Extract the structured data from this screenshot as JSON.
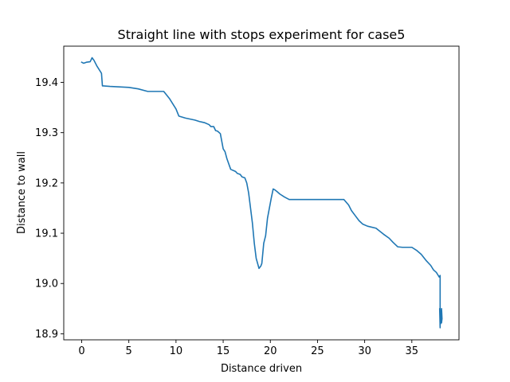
{
  "chart_data": {
    "type": "line",
    "title": "Straight line with stops experiment for case5",
    "xlabel": "Distance driven",
    "ylabel": "Distance to wall",
    "xlim": [
      -1.9,
      40.0
    ],
    "ylim": [
      18.888,
      19.472
    ],
    "xticks": [
      0,
      5,
      10,
      15,
      20,
      25,
      30,
      35
    ],
    "yticks": [
      18.9,
      19.0,
      19.1,
      19.2,
      19.3,
      19.4
    ],
    "xtick_labels": [
      "0",
      "5",
      "10",
      "15",
      "20",
      "25",
      "30",
      "35"
    ],
    "ytick_labels": [
      "18.9",
      "19.0",
      "19.1",
      "19.2",
      "19.3",
      "19.4"
    ],
    "grid": false,
    "color": "#1f77b4",
    "series": [
      {
        "x": [
          0,
          0.2,
          0.5,
          0.9,
          1.1,
          1.3,
          1.6,
          2.1,
          2.2,
          2.3,
          3.0,
          5.0,
          6.0,
          7.0,
          8.0,
          8.7,
          9.3,
          10.0,
          10.3,
          11.0,
          12.0,
          12.5,
          13.0,
          13.5,
          13.7,
          14.0,
          14.2,
          14.4,
          14.7,
          15.0,
          15.2,
          15.4,
          15.8,
          16.3,
          16.5,
          16.8,
          17.0,
          17.3,
          17.5,
          17.7,
          17.9,
          18.1,
          18.3,
          18.5,
          18.8,
          19.0,
          19.1,
          19.3,
          19.5,
          19.7,
          19.9,
          20.1,
          20.3,
          20.5,
          20.7,
          21.0,
          21.5,
          22.0,
          22.5,
          23.0,
          25.0,
          27.0,
          27.8,
          28.3,
          28.6,
          29.0,
          29.4,
          29.8,
          30.3,
          31.2,
          32.0,
          32.6,
          33.0,
          33.5,
          34.0,
          34.5,
          35.0,
          35.5,
          36.0,
          36.5,
          37.0,
          37.3,
          37.6,
          37.8,
          37.9,
          38.0,
          38.0,
          37.95,
          38.05,
          38.1,
          38.15,
          38.2,
          38.15
        ],
        "y": [
          19.44,
          19.438,
          19.44,
          19.441,
          19.449,
          19.444,
          19.433,
          19.418,
          19.393,
          19.393,
          19.392,
          19.39,
          19.387,
          19.382,
          19.382,
          19.382,
          19.368,
          19.347,
          19.333,
          19.329,
          19.325,
          19.322,
          19.32,
          19.316,
          19.312,
          19.312,
          19.304,
          19.303,
          19.298,
          19.268,
          19.262,
          19.248,
          19.227,
          19.223,
          19.219,
          19.217,
          19.212,
          19.21,
          19.2,
          19.18,
          19.15,
          19.12,
          19.08,
          19.05,
          19.03,
          19.035,
          19.04,
          19.08,
          19.095,
          19.13,
          19.15,
          19.17,
          19.188,
          19.186,
          19.183,
          19.178,
          19.172,
          19.167,
          19.167,
          19.167,
          19.167,
          19.167,
          19.167,
          19.156,
          19.145,
          19.135,
          19.125,
          19.118,
          19.114,
          19.11,
          19.098,
          19.09,
          19.082,
          19.073,
          19.072,
          19.072,
          19.072,
          19.066,
          19.058,
          19.046,
          19.036,
          19.027,
          19.022,
          19.016,
          19.013,
          19.016,
          18.912,
          18.95,
          18.92,
          18.935,
          18.95,
          18.93,
          18.922
        ]
      }
    ]
  }
}
